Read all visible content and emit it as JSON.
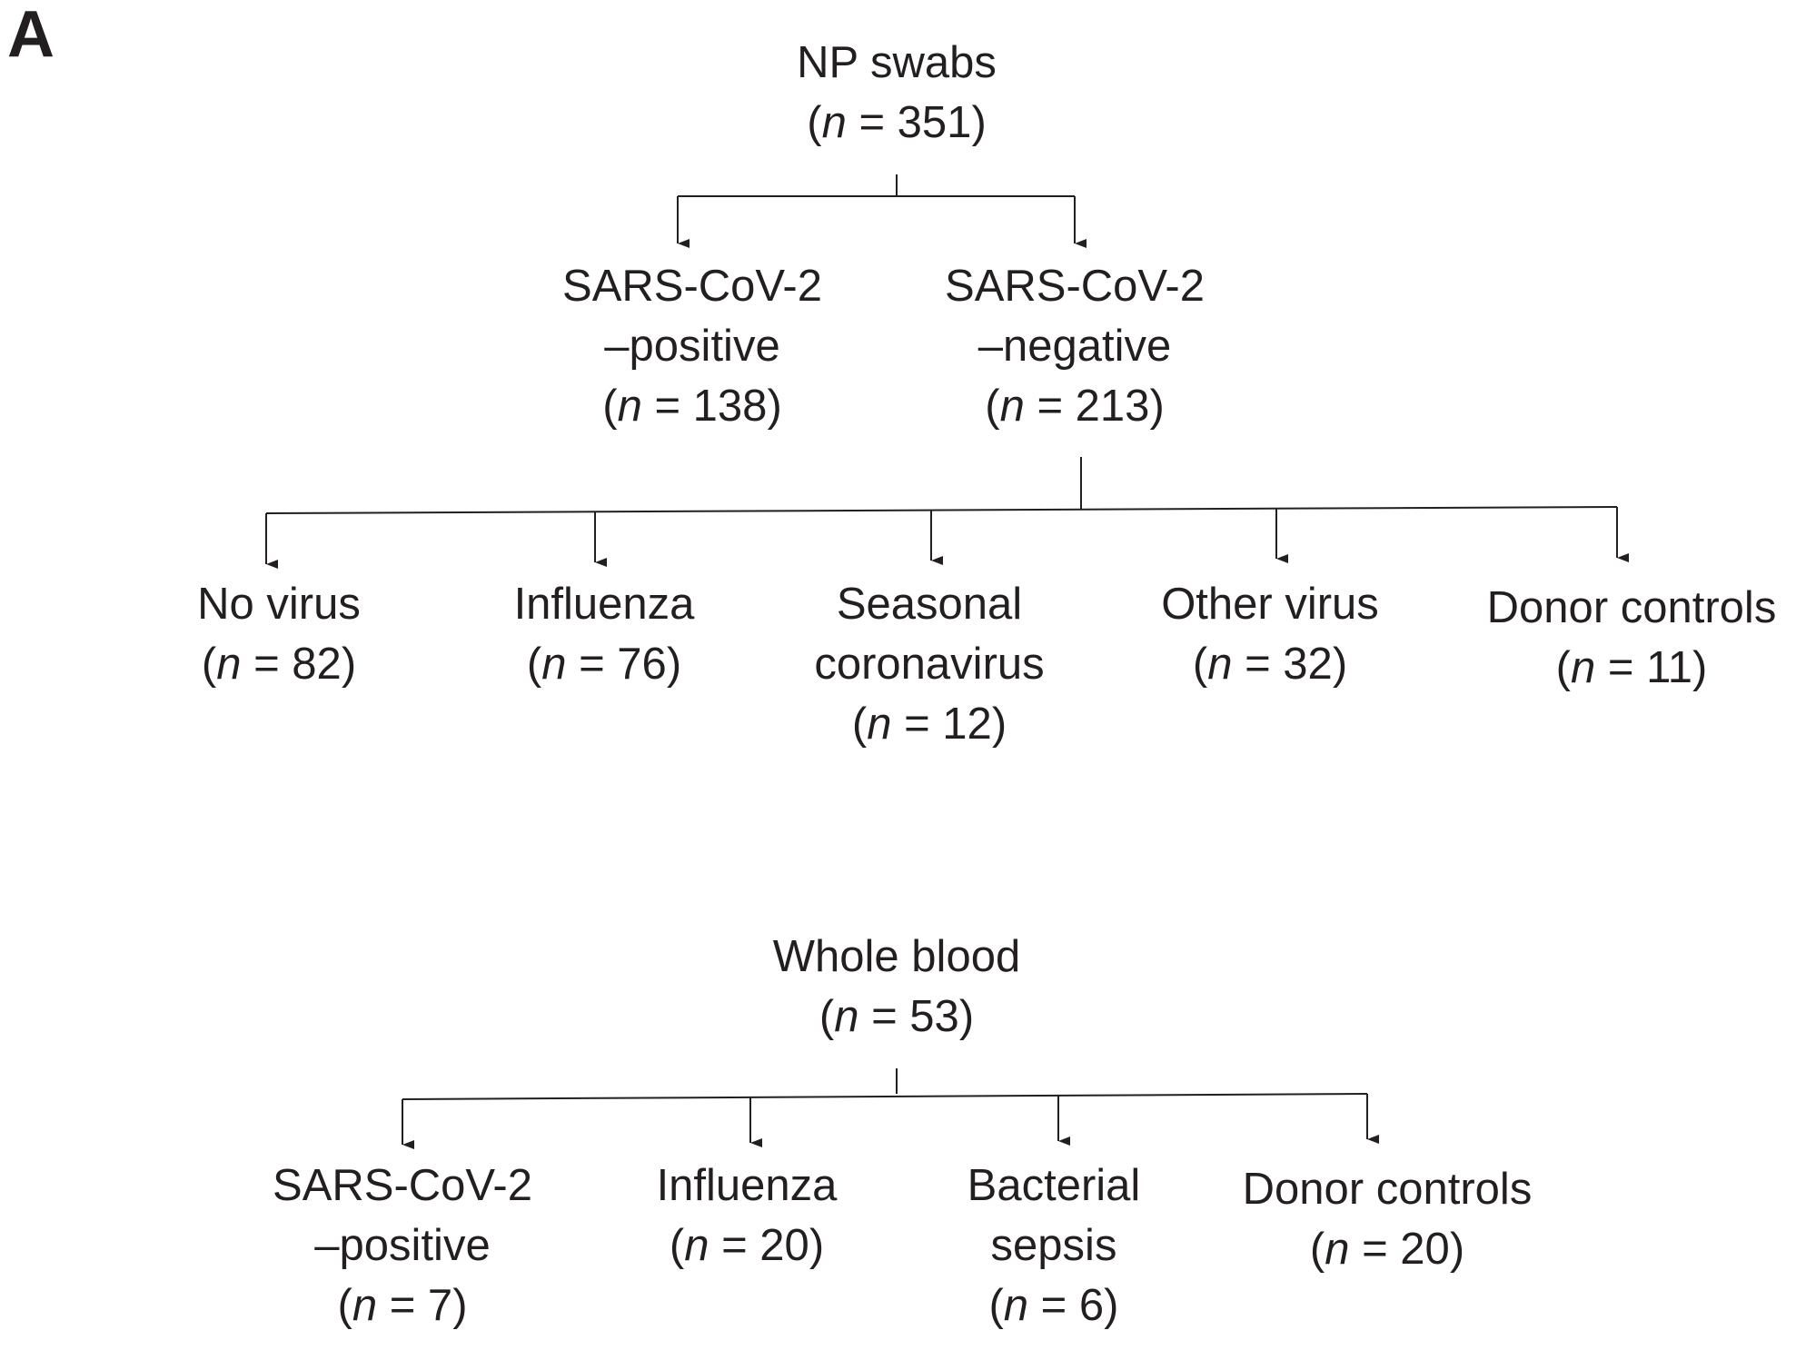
{
  "panel_label": "A",
  "np_tree": {
    "root": {
      "lines": [
        "NP swabs"
      ],
      "n": "351"
    },
    "level1": [
      {
        "id": "pos",
        "lines": [
          "SARS-CoV-2",
          "–positive"
        ],
        "n": "138"
      },
      {
        "id": "neg",
        "lines": [
          "SARS-CoV-2",
          "–negative"
        ],
        "n": "213"
      }
    ],
    "level2": [
      {
        "id": "novirus",
        "lines": [
          "No virus"
        ],
        "n": "82"
      },
      {
        "id": "influenza",
        "lines": [
          "Influenza"
        ],
        "n": "76"
      },
      {
        "id": "seasonal",
        "lines": [
          "Seasonal",
          "coronavirus"
        ],
        "n": "12"
      },
      {
        "id": "other",
        "lines": [
          "Other virus"
        ],
        "n": "32"
      },
      {
        "id": "donor",
        "lines": [
          "Donor controls"
        ],
        "n": "11"
      }
    ]
  },
  "blood_tree": {
    "root": {
      "lines": [
        "Whole blood"
      ],
      "n": "53"
    },
    "level1": [
      {
        "id": "sars",
        "lines": [
          "SARS-CoV-2",
          "–positive"
        ],
        "n": "7"
      },
      {
        "id": "influenza",
        "lines": [
          "Influenza"
        ],
        "n": "20"
      },
      {
        "id": "sepsis",
        "lines": [
          "Bacterial",
          "sepsis"
        ],
        "n": "6"
      },
      {
        "id": "donor",
        "lines": [
          "Donor controls"
        ],
        "n": "20"
      }
    ]
  },
  "n_symbol": "n",
  "n_prefix": "(",
  "n_infix": " = ",
  "n_suffix": ")"
}
